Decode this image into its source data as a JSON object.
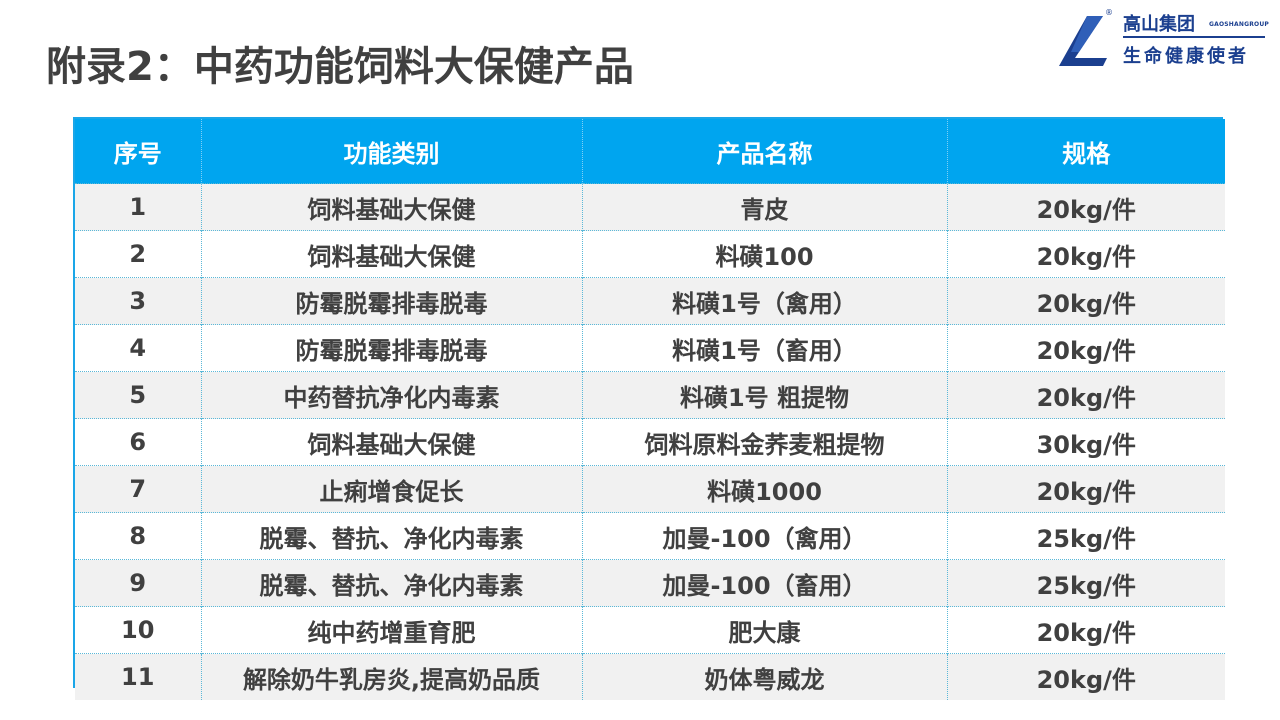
{
  "title": "附录2：中药功能饲料大保健产品",
  "logo": {
    "registered": "®",
    "name_cn": "高山集团",
    "name_en": "GAOSHANGROUP",
    "slogan": "生命健康使者"
  },
  "colors": {
    "header_bg": "#00a5ef",
    "row_alt_bg": "#f1f1f1",
    "text": "#404040",
    "brand": "#1b3f8f"
  },
  "table": {
    "headers": [
      "序号",
      "功能类别",
      "产品名称",
      "规格"
    ],
    "rows": [
      [
        "1",
        "饲料基础大保健",
        "青皮",
        "20kg/件"
      ],
      [
        "2",
        "饲料基础大保健",
        "料磺100",
        "20kg/件"
      ],
      [
        "3",
        "防霉脱霉排毒脱毒",
        "料磺1号（禽用）",
        "20kg/件"
      ],
      [
        "4",
        "防霉脱霉排毒脱毒",
        "料磺1号（畜用）",
        "20kg/件"
      ],
      [
        "5",
        "中药替抗净化内毒素",
        "料磺1号 粗提物",
        "20kg/件"
      ],
      [
        "6",
        "饲料基础大保健",
        "饲料原料金荞麦粗提物",
        "30kg/件"
      ],
      [
        "7",
        "止痢增食促长",
        "料磺1000",
        "20kg/件"
      ],
      [
        "8",
        "脱霉、替抗、净化内毒素",
        "加曼-100（禽用）",
        "25kg/件"
      ],
      [
        "9",
        "脱霉、替抗、净化内毒素",
        "加曼-100（畜用）",
        "25kg/件"
      ],
      [
        "10",
        "纯中药增重育肥",
        "肥大康",
        "20kg/件"
      ],
      [
        "11",
        "解除奶牛乳房炎,提高奶品质",
        "奶体粤威龙",
        "20kg/件"
      ]
    ]
  }
}
